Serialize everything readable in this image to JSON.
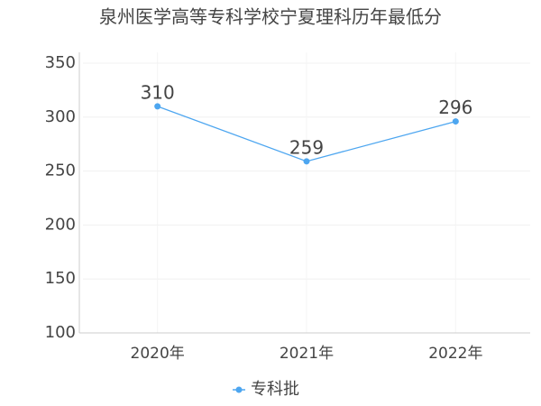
{
  "chart_data": {
    "type": "line",
    "title": "泉州医学高等专科学校宁夏理科历年最低分",
    "categories": [
      "2020年",
      "2021年",
      "2022年"
    ],
    "series": [
      {
        "name": "专科批",
        "color": "#4da6f0",
        "values": [
          310,
          259,
          296
        ]
      }
    ],
    "ylim": [
      100,
      350
    ],
    "yticks": [
      100,
      150,
      200,
      250,
      300,
      350
    ],
    "grid": true,
    "legend": "bottom"
  }
}
